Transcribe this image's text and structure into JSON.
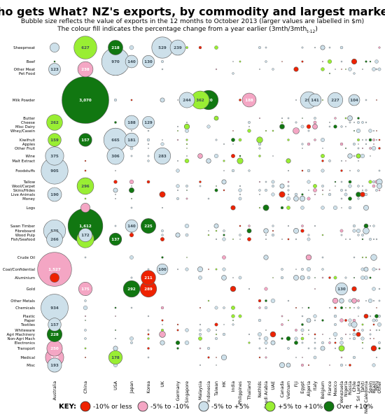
{
  "chart_data": {
    "type": "bubble-matrix",
    "title": "Who gets What? NZ's exports, by commodity and largest markets",
    "subtitle_line1": "Bubble size reflects the value of exports in the 12 months to October 2013 (larger values are labelled in $m)",
    "subtitle_line2": "The colour fill indicates the percentage change from a year earlier (3mth/3mth",
    "subtitle_suffix": "t-12",
    "subtitle_close": ")",
    "rows": [
      "Sheepmeat",
      "Beef",
      "Other Meat",
      "Pet Food",
      "Milk Powder",
      "Butter",
      "Cheese",
      "Misc Dairy",
      "Whey/Casein",
      "Kiwifruit",
      "Apples",
      "Other Fruit",
      "Wine",
      "Malt Extract",
      "Foodstuffs",
      "Tallow",
      "Wool/Carpet",
      "Skins/Hides",
      "Live Animals",
      "Money",
      "Logs",
      "Sawn Timber",
      "Fibreboard",
      "Wood Pulp",
      "Fish/Seafood",
      "Crude Oil",
      "Coal/Confidential",
      "Aluminium",
      "Gold",
      "Other Metals",
      "Chemicals",
      "Plastic",
      "Paper",
      "Textiles",
      "Whiteware",
      "Agri Machinery",
      "Non-Agri Mach",
      "Electronics",
      "Transport",
      "Medical",
      "Misc"
    ],
    "columns": [
      "Australia",
      "China",
      "USA",
      "Japan",
      "Korea",
      "UK",
      "Germany",
      "Singapore",
      "Malaysia",
      "Indonesia",
      "Taiwan",
      "HK",
      "India",
      "Philippines",
      "Thailand",
      "Nethlds",
      "Saudi Arabia",
      "UAE",
      "Canada",
      "Vietnam",
      "Fiji",
      "Egypt",
      "Algeria",
      "Italy",
      "Belgium",
      "France",
      "Mexico",
      "Venezuela",
      "Nigeria",
      "Russia",
      "Chile",
      "Sri Lanka",
      "Tahiti",
      "New Caledonia",
      "Spain",
      "Brazil",
      "Peru",
      "Other"
    ],
    "change_categories": [
      {
        "key": "red",
        "label": "-10% or less",
        "color": "#ee2200"
      },
      {
        "key": "pink",
        "label": "-5% to -10%",
        "color": "#f4a6c4"
      },
      {
        "key": "blue",
        "label": "-5% to +5%",
        "color": "#cde0ea"
      },
      {
        "key": "lime",
        "label": "+5% to +10%",
        "color": "#99ee33"
      },
      {
        "key": "green",
        "label": "Over +10%",
        "color": "#117711"
      }
    ],
    "value_units": "$m",
    "labelled_values": [
      {
        "row": "Sheepmeat",
        "col": "Australia",
        "value": null,
        "change": "blue"
      },
      {
        "row": "Sheepmeat",
        "col": "China",
        "value": 627,
        "change": "lime"
      },
      {
        "row": "Sheepmeat",
        "col": "USA",
        "value": 218,
        "change": "green"
      },
      {
        "row": "Sheepmeat",
        "col": "UK",
        "value": 529,
        "change": "blue"
      },
      {
        "row": "Sheepmeat",
        "col": "Germany",
        "value": 239,
        "change": "blue"
      },
      {
        "row": "Beef",
        "col": "USA",
        "value": 970,
        "change": "blue"
      },
      {
        "row": "Beef",
        "col": "Japan",
        "value": 140,
        "change": "blue"
      },
      {
        "row": "Beef",
        "col": "Korea",
        "value": 130,
        "change": "blue"
      },
      {
        "row": "Other Meat",
        "col": "Australia",
        "value": 123,
        "change": "blue"
      },
      {
        "row": "Other Meat",
        "col": "China",
        "value": 238,
        "change": "pink"
      },
      {
        "row": "Milk Powder",
        "col": "China",
        "value": 3070,
        "change": "green"
      },
      {
        "row": "Milk Powder",
        "col": "Singapore",
        "value": 244,
        "change": "blue"
      },
      {
        "row": "Milk Powder",
        "col": "Malaysia",
        "value": 362,
        "change": "lime"
      },
      {
        "row": "Milk Powder",
        "col": "Indonesia",
        "value": 420,
        "change": "green"
      },
      {
        "row": "Milk Powder",
        "col": "Thailand",
        "value": 188,
        "change": "pink"
      },
      {
        "row": "Milk Powder",
        "col": "Algeria",
        "value": 296,
        "change": "blue"
      },
      {
        "row": "Milk Powder",
        "col": "Italy",
        "value": 141,
        "change": "blue"
      },
      {
        "row": "Milk Powder",
        "col": "Mexico",
        "value": 227,
        "change": "blue"
      },
      {
        "row": "Milk Powder",
        "col": "Chile",
        "value": 104,
        "change": "blue"
      },
      {
        "row": "Cheese",
        "col": "Australia",
        "value": 262,
        "change": "lime"
      },
      {
        "row": "Cheese",
        "col": "Japan",
        "value": 188,
        "change": "blue"
      },
      {
        "row": "Cheese",
        "col": "Korea",
        "value": 129,
        "change": "blue"
      },
      {
        "row": "Kiwifruit",
        "col": "Australia",
        "value": 159,
        "change": "lime"
      },
      {
        "row": "Kiwifruit",
        "col": "China",
        "value": 157,
        "change": "green"
      },
      {
        "row": "Kiwifruit",
        "col": "USA",
        "value": 665,
        "change": "blue"
      },
      {
        "row": "Kiwifruit",
        "col": "Japan",
        "value": 181,
        "change": "blue"
      },
      {
        "row": "Wine",
        "col": "Australia",
        "value": 375,
        "change": "blue"
      },
      {
        "row": "Wine",
        "col": "USA",
        "value": 306,
        "change": "blue"
      },
      {
        "row": "Wine",
        "col": "UK",
        "value": 283,
        "change": "blue"
      },
      {
        "row": "Foodstuffs",
        "col": "Australia",
        "value": 905,
        "change": "blue"
      },
      {
        "row": "Wool/Carpet",
        "col": "China",
        "value": 296,
        "change": "lime"
      },
      {
        "row": "Live Animals",
        "col": "Australia",
        "value": 190,
        "change": "blue"
      },
      {
        "row": "Logs",
        "col": "China",
        "value": null,
        "change": "pink"
      },
      {
        "row": "Sawn Timber",
        "col": "China",
        "value": 1612,
        "change": "green"
      },
      {
        "row": "Sawn Timber",
        "col": "Japan",
        "value": 140,
        "change": "blue"
      },
      {
        "row": "Sawn Timber",
        "col": "Korea",
        "value": 225,
        "change": "green"
      },
      {
        "row": "Fibreboard",
        "col": "Australia",
        "value": 575,
        "change": "blue"
      },
      {
        "row": "Wood Pulp",
        "col": "China",
        "value": 172,
        "change": "blue"
      },
      {
        "row": "Fish/Seafood",
        "col": "Australia",
        "value": 266,
        "change": "blue"
      },
      {
        "row": "Fish/Seafood",
        "col": "China",
        "value": 318,
        "change": "lime"
      },
      {
        "row": "Fish/Seafood",
        "col": "USA",
        "value": 137,
        "change": "green"
      },
      {
        "row": "Coal/Confidential",
        "col": "Australia",
        "value": 1527,
        "change": "pink"
      },
      {
        "row": "Coal/Confidential",
        "col": "UK",
        "value": 100,
        "change": "blue"
      },
      {
        "row": "Aluminium",
        "col": "Korea",
        "value": 211,
        "change": "red"
      },
      {
        "row": "Aluminium",
        "col": "Australia",
        "value": null,
        "change": "red"
      },
      {
        "row": "Gold",
        "col": "China",
        "value": 175,
        "change": "pink"
      },
      {
        "row": "Gold",
        "col": "Japan",
        "value": 292,
        "change": "green"
      },
      {
        "row": "Gold",
        "col": "Korea",
        "value": 289,
        "change": "red"
      },
      {
        "row": "Gold",
        "col": "Venezuela",
        "value": 130,
        "change": "blue"
      },
      {
        "row": "Chemicals",
        "col": "Australia",
        "value": 934,
        "change": "blue"
      },
      {
        "row": "Textiles",
        "col": "Australia",
        "value": 157,
        "change": "blue"
      },
      {
        "row": "Agri Machinery",
        "col": "Australia",
        "value": 228,
        "change": "green"
      },
      {
        "row": "Transport",
        "col": "Australia",
        "value": 250,
        "change": "pink"
      },
      {
        "row": "Medical",
        "col": "Australia",
        "value": 370,
        "change": "pink"
      },
      {
        "row": "Medical",
        "col": "USA",
        "value": 178,
        "change": "lime"
      },
      {
        "row": "Misc",
        "col": "Australia",
        "value": 193,
        "change": "blue"
      }
    ],
    "legend_position": "bottom"
  },
  "key": {
    "title": "KEY:",
    "items": [
      "-10% or less",
      "-5% to -10%",
      "-5% to +5%",
      "+5% to +10%",
      "Over +10%"
    ]
  }
}
